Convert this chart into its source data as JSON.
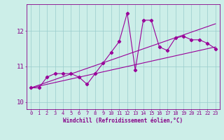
{
  "x": [
    0,
    1,
    2,
    3,
    4,
    5,
    6,
    7,
    8,
    9,
    10,
    11,
    12,
    13,
    14,
    15,
    16,
    17,
    18,
    19,
    20,
    21,
    22,
    23
  ],
  "y_main": [
    10.4,
    10.4,
    10.7,
    10.8,
    10.8,
    10.8,
    10.7,
    10.5,
    10.8,
    11.1,
    11.4,
    11.7,
    12.5,
    10.9,
    12.3,
    12.3,
    11.55,
    11.45,
    11.8,
    11.85,
    11.75,
    11.75,
    11.65,
    11.5
  ],
  "trend_lower_start": 10.4,
  "trend_lower_end": 11.55,
  "trend_upper_start": 10.4,
  "trend_upper_end": 12.2,
  "line_color": "#990099",
  "bg_color": "#cceee8",
  "grid_color": "#99cccc",
  "text_color": "#880088",
  "xlabel": "Windchill (Refroidissement éolien,°C)",
  "ylim": [
    9.8,
    12.75
  ],
  "yticks": [
    10,
    11,
    12
  ],
  "xlim": [
    -0.5,
    23.5
  ],
  "figwidth": 3.2,
  "figheight": 2.0,
  "dpi": 100
}
